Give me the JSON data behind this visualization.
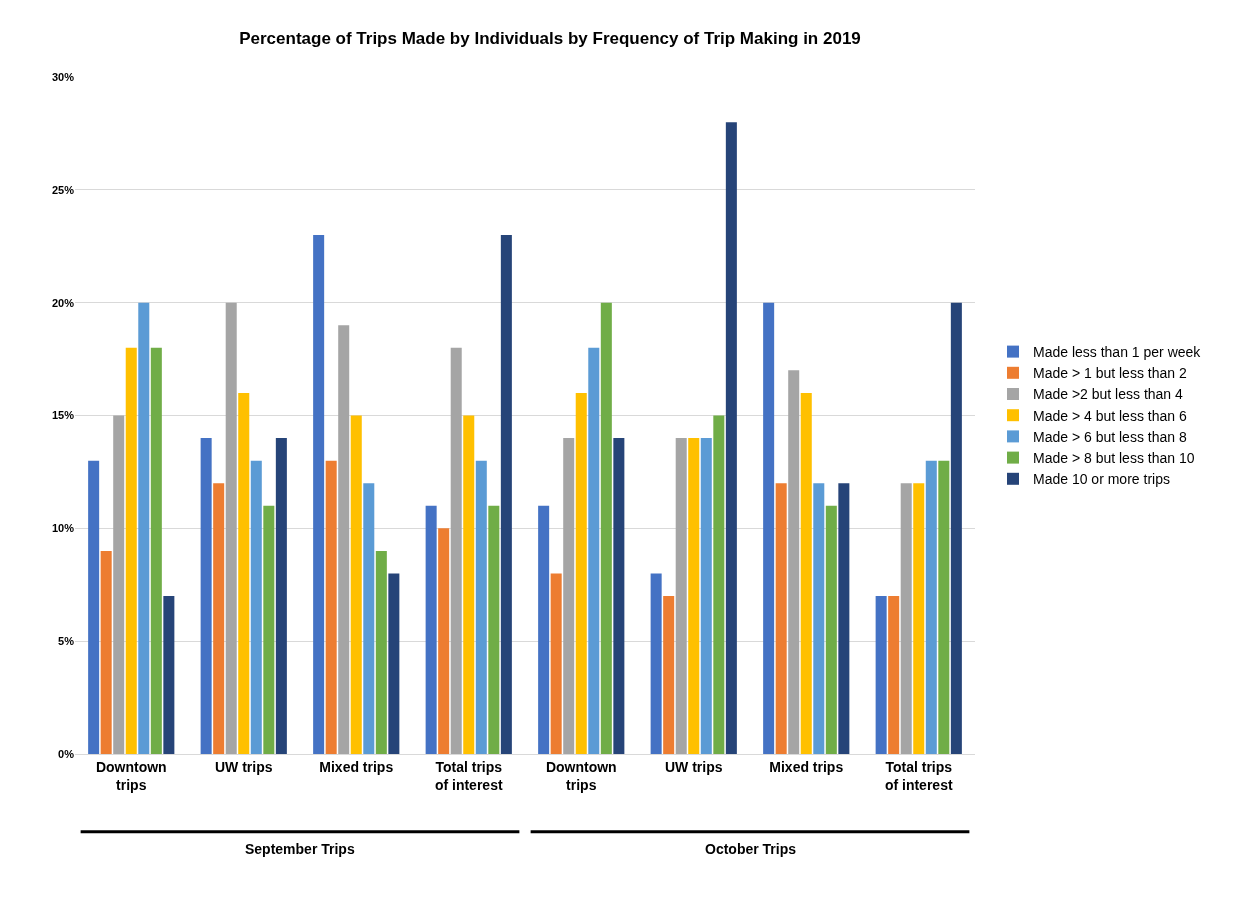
{
  "chart_data": {
    "type": "bar",
    "title": "Percentage of Trips Made by Individuals by Frequency of Trip Making in 2019",
    "categories": [
      "Downtown trips",
      "UW trips",
      "Mixed trips",
      "Total trips of interest",
      "Downtown trips",
      "UW trips",
      "Mixed trips",
      "Total trips of interest"
    ],
    "series": [
      {
        "name": "Made less than 1 per week",
        "color": "#4472c4",
        "values": [
          13,
          14,
          23,
          11,
          11,
          8,
          20,
          7
        ]
      },
      {
        "name": "Made > 1 but less than 2",
        "color": "#ed7d31",
        "values": [
          9,
          12,
          13,
          10,
          8,
          7,
          12,
          7
        ]
      },
      {
        "name": "Made >2 but less than 4",
        "color": "#a5a5a5",
        "values": [
          15,
          20,
          19,
          18,
          14,
          14,
          17,
          12
        ]
      },
      {
        "name": "Made > 4 but less than 6",
        "color": "#ffc000",
        "values": [
          18,
          16,
          15,
          15,
          16,
          14,
          16,
          12
        ]
      },
      {
        "name": "Made > 6 but less than 8",
        "color": "#5b9bd5",
        "values": [
          20,
          13,
          12,
          13,
          18,
          14,
          12,
          13
        ]
      },
      {
        "name": "Made > 8 but less than 10",
        "color": "#70ad47",
        "values": [
          18,
          11,
          9,
          11,
          20,
          15,
          11,
          13
        ]
      },
      {
        "name": "Made 10 or more trips",
        "color": "#264478",
        "values": [
          7,
          14,
          8,
          23,
          14,
          28,
          12,
          20
        ]
      }
    ],
    "ylim": [
      0,
      30
    ],
    "yticks": [
      {
        "value": 0,
        "label": "0%"
      },
      {
        "value": 5,
        "label": "5%"
      },
      {
        "value": 10,
        "label": "10%"
      },
      {
        "value": 15,
        "label": "15%"
      },
      {
        "value": 20,
        "label": "20%"
      },
      {
        "value": 25,
        "label": "25%"
      },
      {
        "value": 30,
        "label": "30%"
      }
    ],
    "grid": "y",
    "legend": "right",
    "annotations": [
      "September Trips",
      "October Trips"
    ]
  }
}
